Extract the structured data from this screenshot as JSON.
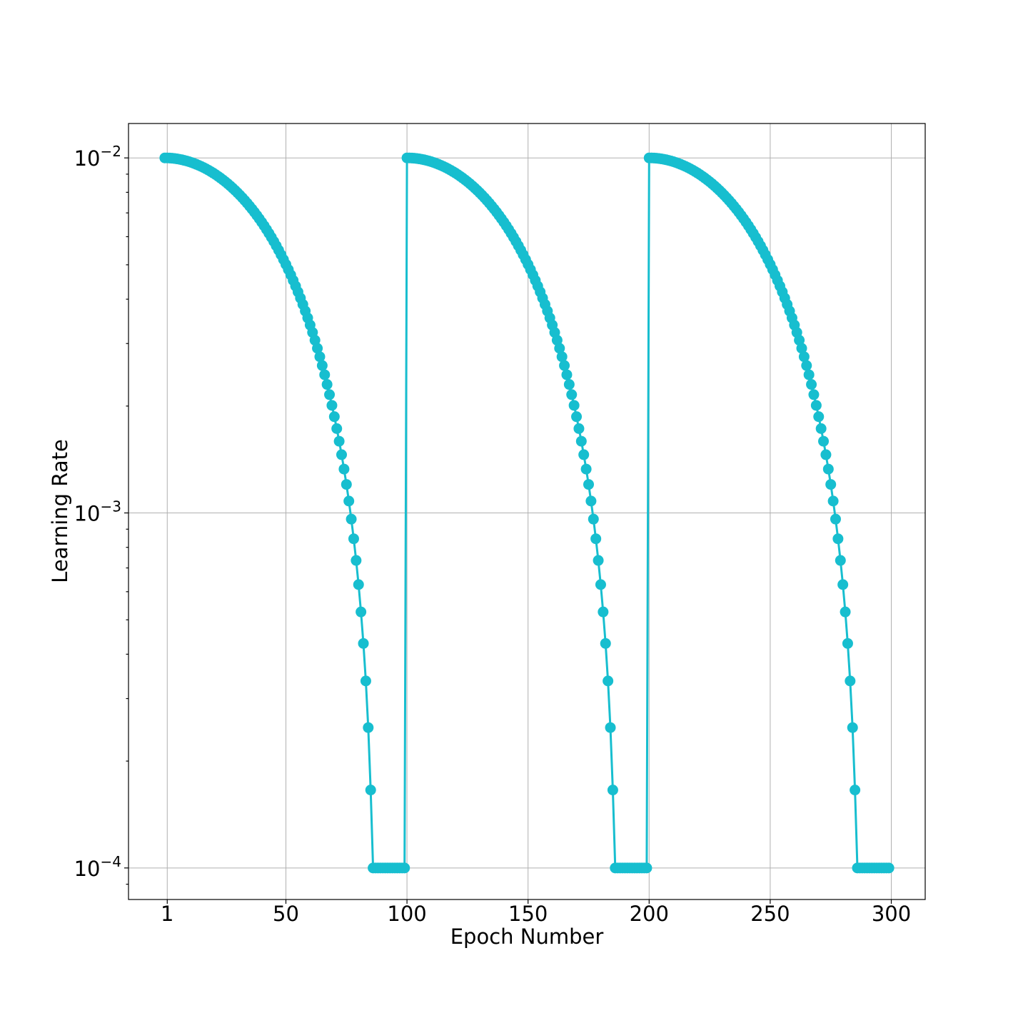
{
  "chart_data": {
    "type": "line",
    "xlabel": "Epoch Number",
    "ylabel": "Learning Rate",
    "yscale": "log",
    "xlim": [
      -15,
      314
    ],
    "ylim": [
      8.15e-05,
      0.0125
    ],
    "x_ticks": [
      1,
      50,
      100,
      150,
      200,
      250,
      300
    ],
    "x_tick_labels": [
      "1",
      "50",
      "100",
      "150",
      "200",
      "250",
      "300"
    ],
    "y_ticks": [
      {
        "value": 0.01,
        "base": "10",
        "exp": "−2"
      },
      {
        "value": 0.001,
        "base": "10",
        "exp": "−3"
      },
      {
        "value": 0.0001,
        "base": "10",
        "exp": "−4"
      }
    ],
    "grid": true,
    "color": "#17becf",
    "marker": "circle",
    "series": [
      {
        "x": [
          0,
          1,
          2,
          3,
          4,
          5,
          6,
          7,
          8,
          9,
          10,
          11,
          12,
          13,
          14,
          15,
          16,
          17,
          18,
          19,
          20,
          21,
          22,
          23,
          24,
          25,
          26,
          27,
          28,
          29,
          30,
          31,
          32,
          33,
          34,
          35,
          36,
          37,
          38,
          39,
          40,
          41,
          42,
          43,
          44,
          45,
          46,
          47,
          48,
          49,
          50,
          51,
          52,
          53,
          54,
          55,
          56,
          57,
          58,
          59,
          60,
          61,
          62,
          63,
          64,
          65,
          66,
          67,
          68,
          69,
          70,
          71,
          72,
          73,
          74,
          75,
          76,
          77,
          78,
          79,
          80,
          81,
          82,
          83,
          84,
          85,
          86,
          87,
          88,
          89,
          90,
          91,
          92,
          93,
          94,
          95,
          96,
          97,
          98,
          99,
          100,
          101,
          102,
          103,
          104,
          105,
          106,
          107,
          108,
          109,
          110,
          111,
          112,
          113,
          114,
          115,
          116,
          117,
          118,
          119,
          120,
          121,
          122,
          123,
          124,
          125,
          126,
          127,
          128,
          129,
          130,
          131,
          132,
          133,
          134,
          135,
          136,
          137,
          138,
          139,
          140,
          141,
          142,
          143,
          144,
          145,
          146,
          147,
          148,
          149,
          150,
          151,
          152,
          153,
          154,
          155,
          156,
          157,
          158,
          159,
          160,
          161,
          162,
          163,
          164,
          165,
          166,
          167,
          168,
          169,
          170,
          171,
          172,
          173,
          174,
          175,
          176,
          177,
          178,
          179,
          180,
          181,
          182,
          183,
          184,
          185,
          186,
          187,
          188,
          189,
          190,
          191,
          192,
          193,
          194,
          195,
          196,
          197,
          198,
          199,
          200,
          201,
          202,
          203,
          204,
          205,
          206,
          207,
          208,
          209,
          210,
          211,
          212,
          213,
          214,
          215,
          216,
          217,
          218,
          219,
          220,
          221,
          222,
          223,
          224,
          225,
          226,
          227,
          228,
          229,
          230,
          231,
          232,
          233,
          234,
          235,
          236,
          237,
          238,
          239,
          240,
          241,
          242,
          243,
          244,
          245,
          246,
          247,
          248,
          249,
          250,
          251,
          252,
          253,
          254,
          255,
          256,
          257,
          258,
          259,
          260,
          261,
          262,
          263,
          264,
          265,
          266,
          267,
          268,
          269,
          270,
          271,
          272,
          273,
          274,
          275,
          276,
          277,
          278,
          279,
          280,
          281,
          282,
          283,
          284,
          285,
          286,
          287,
          288,
          289,
          290,
          291,
          292,
          293,
          294,
          295,
          296,
          297,
          298,
          299
        ],
        "y": [
          0.01,
          0.009998,
          0.00999,
          0.009978,
          0.009961,
          0.009939,
          0.009912,
          0.00988,
          0.009844,
          0.009803,
          0.009758,
          0.009708,
          0.009653,
          0.009594,
          0.009531,
          0.009464,
          0.009392,
          0.009316,
          0.009236,
          0.009152,
          0.009064,
          0.008972,
          0.008876,
          0.008776,
          0.008673,
          0.008566,
          0.008456,
          0.008342,
          0.008225,
          0.008104,
          0.00798,
          0.007854,
          0.007724,
          0.007591,
          0.007456,
          0.007317,
          0.007177,
          0.007034,
          0.006888,
          0.006741,
          0.006591,
          0.00644,
          0.006286,
          0.006131,
          0.005975,
          0.005817,
          0.005658,
          0.005497,
          0.005336,
          0.005174,
          0.005011,
          0.004848,
          0.004684,
          0.00452,
          0.004356,
          0.004193,
          0.004029,
          0.003867,
          0.003705,
          0.003543,
          0.003383,
          0.003224,
          0.003066,
          0.002909,
          0.002754,
          0.002601,
          0.00245,
          0.002301,
          0.002154,
          0.002009,
          0.001867,
          0.001728,
          0.001592,
          0.001459,
          0.001329,
          0.001203,
          0.00108,
          0.0009608,
          0.0008457,
          0.0007348,
          0.0006283,
          0.0005263,
          0.0004289,
          0.0003363,
          0.0002485,
          0.0001658,
          0.0001,
          0.0001,
          0.0001,
          0.0001,
          0.0001,
          0.0001,
          0.0001,
          0.0001,
          0.0001,
          0.0001,
          0.0001,
          0.0001,
          0.0001,
          0.0001,
          0.01,
          0.009998,
          0.00999,
          0.009978,
          0.009961,
          0.009939,
          0.009912,
          0.00988,
          0.009844,
          0.009803,
          0.009758,
          0.009708,
          0.009653,
          0.009594,
          0.009531,
          0.009464,
          0.009392,
          0.009316,
          0.009236,
          0.009152,
          0.009064,
          0.008972,
          0.008876,
          0.008776,
          0.008673,
          0.008566,
          0.008456,
          0.008342,
          0.008225,
          0.008104,
          0.00798,
          0.007854,
          0.007724,
          0.007591,
          0.007456,
          0.007317,
          0.007177,
          0.007034,
          0.006888,
          0.006741,
          0.006591,
          0.00644,
          0.006286,
          0.006131,
          0.005975,
          0.005817,
          0.005658,
          0.005497,
          0.005336,
          0.005174,
          0.005011,
          0.004848,
          0.004684,
          0.00452,
          0.004356,
          0.004193,
          0.004029,
          0.003867,
          0.003705,
          0.003543,
          0.003383,
          0.003224,
          0.003066,
          0.002909,
          0.002754,
          0.002601,
          0.00245,
          0.002301,
          0.002154,
          0.002009,
          0.001867,
          0.001728,
          0.001592,
          0.001459,
          0.001329,
          0.001203,
          0.00108,
          0.0009608,
          0.0008457,
          0.0007348,
          0.0006283,
          0.0005263,
          0.0004289,
          0.0003363,
          0.0002485,
          0.0001658,
          0.0001,
          0.0001,
          0.0001,
          0.0001,
          0.0001,
          0.0001,
          0.0001,
          0.0001,
          0.0001,
          0.0001,
          0.0001,
          0.0001,
          0.0001,
          0.0001,
          0.01,
          0.009998,
          0.00999,
          0.009978,
          0.009961,
          0.009939,
          0.009912,
          0.00988,
          0.009844,
          0.009803,
          0.009758,
          0.009708,
          0.009653,
          0.009594,
          0.009531,
          0.009464,
          0.009392,
          0.009316,
          0.009236,
          0.009152,
          0.009064,
          0.008972,
          0.008876,
          0.008776,
          0.008673,
          0.008566,
          0.008456,
          0.008342,
          0.008225,
          0.008104,
          0.00798,
          0.007854,
          0.007724,
          0.007591,
          0.007456,
          0.007317,
          0.007177,
          0.007034,
          0.006888,
          0.006741,
          0.006591,
          0.00644,
          0.006286,
          0.006131,
          0.005975,
          0.005817,
          0.005658,
          0.005497,
          0.005336,
          0.005174,
          0.005011,
          0.004848,
          0.004684,
          0.00452,
          0.004356,
          0.004193,
          0.004029,
          0.003867,
          0.003705,
          0.003543,
          0.003383,
          0.003224,
          0.003066,
          0.002909,
          0.002754,
          0.002601,
          0.00245,
          0.002301,
          0.002154,
          0.002009,
          0.001867,
          0.001728,
          0.001592,
          0.001459,
          0.001329,
          0.001203,
          0.00108,
          0.0009608,
          0.0008457,
          0.0007348,
          0.0006283,
          0.0005263,
          0.0004289,
          0.0003363,
          0.0002485,
          0.0001658,
          0.0001,
          0.0001,
          0.0001,
          0.0001,
          0.0001,
          0.0001,
          0.0001,
          0.0001,
          0.0001,
          0.0001,
          0.0001,
          0.0001,
          0.0001,
          0.0001
        ]
      }
    ]
  }
}
